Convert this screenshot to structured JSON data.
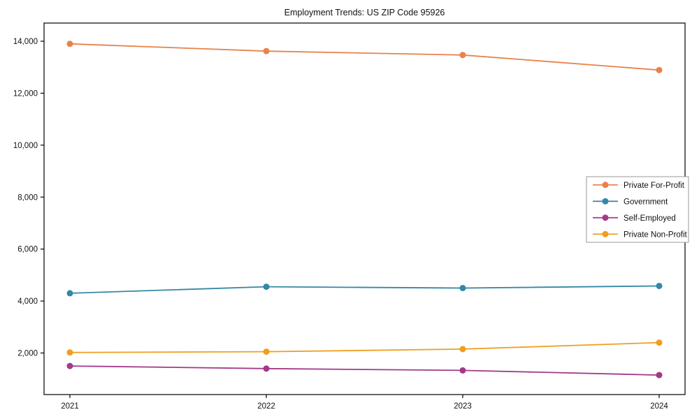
{
  "chart_data": {
    "type": "line",
    "title": "Employment Trends: US ZIP Code 95926",
    "xlabel": "",
    "ylabel": "",
    "categories": [
      "2021",
      "2022",
      "2023",
      "2024"
    ],
    "series": [
      {
        "name": "Private For-Profit",
        "color": "#e8824c",
        "values": [
          13900,
          13620,
          13470,
          12890
        ]
      },
      {
        "name": "Government",
        "color": "#3487a5",
        "values": [
          4300,
          4550,
          4500,
          4580
        ]
      },
      {
        "name": "Self-Employed",
        "color": "#a23a89",
        "values": [
          1500,
          1400,
          1330,
          1150
        ]
      },
      {
        "name": "Private Non-Profit",
        "color": "#f09e1f",
        "values": [
          2020,
          2050,
          2150,
          2400
        ]
      }
    ],
    "yticks": [
      2000,
      4000,
      6000,
      8000,
      10000,
      12000,
      14000
    ],
    "ytick_labels": [
      "2,000",
      "4,000",
      "6,000",
      "8,000",
      "10,000",
      "12,000",
      "14,000"
    ],
    "ylim": [
      400,
      14700
    ],
    "grid": false,
    "legend_position": "middle-right",
    "marker": "circle",
    "axis_color": "#000000",
    "text_color": "#111111"
  }
}
